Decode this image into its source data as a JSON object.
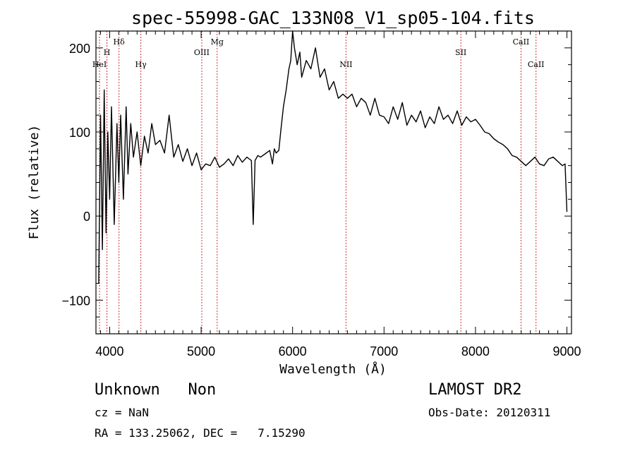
{
  "chart_data": {
    "type": "line",
    "title": "spec-55998-GAC_133N08_V1_sp05-104.fits",
    "xlabel": "Wavelength (Å)",
    "ylabel": "Flux (relative)",
    "xlim": [
      3850,
      9050
    ],
    "ylim": [
      -140,
      220
    ],
    "xticks": [
      4000,
      5000,
      6000,
      7000,
      8000,
      9000
    ],
    "yticks": [
      -100,
      0,
      100,
      200
    ],
    "grid": false,
    "line_color": "#000000",
    "marker_color": "#cc3333",
    "lines": [
      {
        "label": "HeI",
        "x": 3889,
        "label_level": "low"
      },
      {
        "label": "H",
        "x": 3970,
        "label_level": "mid"
      },
      {
        "label": "Hδ",
        "x": 4102,
        "label_level": "high"
      },
      {
        "label": "Hγ",
        "x": 4341,
        "label_level": "low"
      },
      {
        "label": "OIII",
        "x": 5007,
        "label_level": "mid"
      },
      {
        "label": "Mg",
        "x": 5175,
        "label_level": "high"
      },
      {
        "label": "NII",
        "x": 6584,
        "label_level": "low"
      },
      {
        "label": "SII",
        "x": 7840,
        "label_level": "mid"
      },
      {
        "label": "CaII",
        "x": 8498,
        "label_level": "high"
      },
      {
        "label": "CaII",
        "x": 8662,
        "label_level": "low"
      }
    ],
    "x": [
      3880,
      3900,
      3920,
      3940,
      3960,
      3980,
      4000,
      4020,
      4050,
      4080,
      4100,
      4120,
      4150,
      4180,
      4200,
      4230,
      4260,
      4300,
      4340,
      4380,
      4420,
      4460,
      4500,
      4550,
      4600,
      4650,
      4700,
      4750,
      4800,
      4850,
      4900,
      4950,
      5000,
      5050,
      5100,
      5150,
      5200,
      5250,
      5300,
      5350,
      5400,
      5450,
      5500,
      5550,
      5570,
      5590,
      5620,
      5650,
      5700,
      5750,
      5780,
      5800,
      5820,
      5850,
      5870,
      5900,
      5930,
      5960,
      5980,
      6000,
      6020,
      6050,
      6080,
      6100,
      6150,
      6200,
      6250,
      6300,
      6350,
      6400,
      6450,
      6500,
      6550,
      6600,
      6650,
      6700,
      6750,
      6800,
      6850,
      6900,
      6950,
      7000,
      7050,
      7100,
      7150,
      7200,
      7250,
      7300,
      7350,
      7400,
      7450,
      7500,
      7550,
      7600,
      7650,
      7700,
      7750,
      7800,
      7850,
      7900,
      7950,
      8000,
      8050,
      8100,
      8150,
      8200,
      8250,
      8300,
      8350,
      8400,
      8450,
      8500,
      8550,
      8600,
      8650,
      8700,
      8750,
      8800,
      8850,
      8900,
      8950,
      8980,
      9000
    ],
    "y": [
      -80,
      120,
      -40,
      150,
      -20,
      100,
      20,
      130,
      -10,
      110,
      40,
      120,
      20,
      130,
      50,
      110,
      70,
      100,
      60,
      95,
      75,
      110,
      85,
      90,
      75,
      120,
      70,
      85,
      65,
      80,
      60,
      75,
      55,
      62,
      60,
      70,
      58,
      62,
      68,
      60,
      72,
      64,
      70,
      66,
      -10,
      66,
      72,
      70,
      74,
      78,
      62,
      80,
      75,
      78,
      100,
      130,
      150,
      175,
      185,
      220,
      200,
      180,
      195,
      165,
      185,
      175,
      200,
      165,
      175,
      150,
      160,
      140,
      145,
      140,
      145,
      130,
      140,
      135,
      120,
      140,
      120,
      118,
      110,
      130,
      115,
      135,
      108,
      120,
      112,
      125,
      105,
      118,
      110,
      130,
      115,
      120,
      110,
      125,
      108,
      118,
      112,
      115,
      108,
      100,
      98,
      92,
      88,
      85,
      80,
      72,
      70,
      65,
      60,
      65,
      70,
      62,
      60,
      68,
      70,
      65,
      60,
      62,
      5
    ]
  },
  "info": {
    "line1_left": "Unknown   Non",
    "line1_right": "LAMOST DR2",
    "line2_left": "cz = NaN",
    "line2_right": "Obs-Date: 20120311",
    "line3_left": "RA = 133.25062, DEC =   7.15290"
  }
}
